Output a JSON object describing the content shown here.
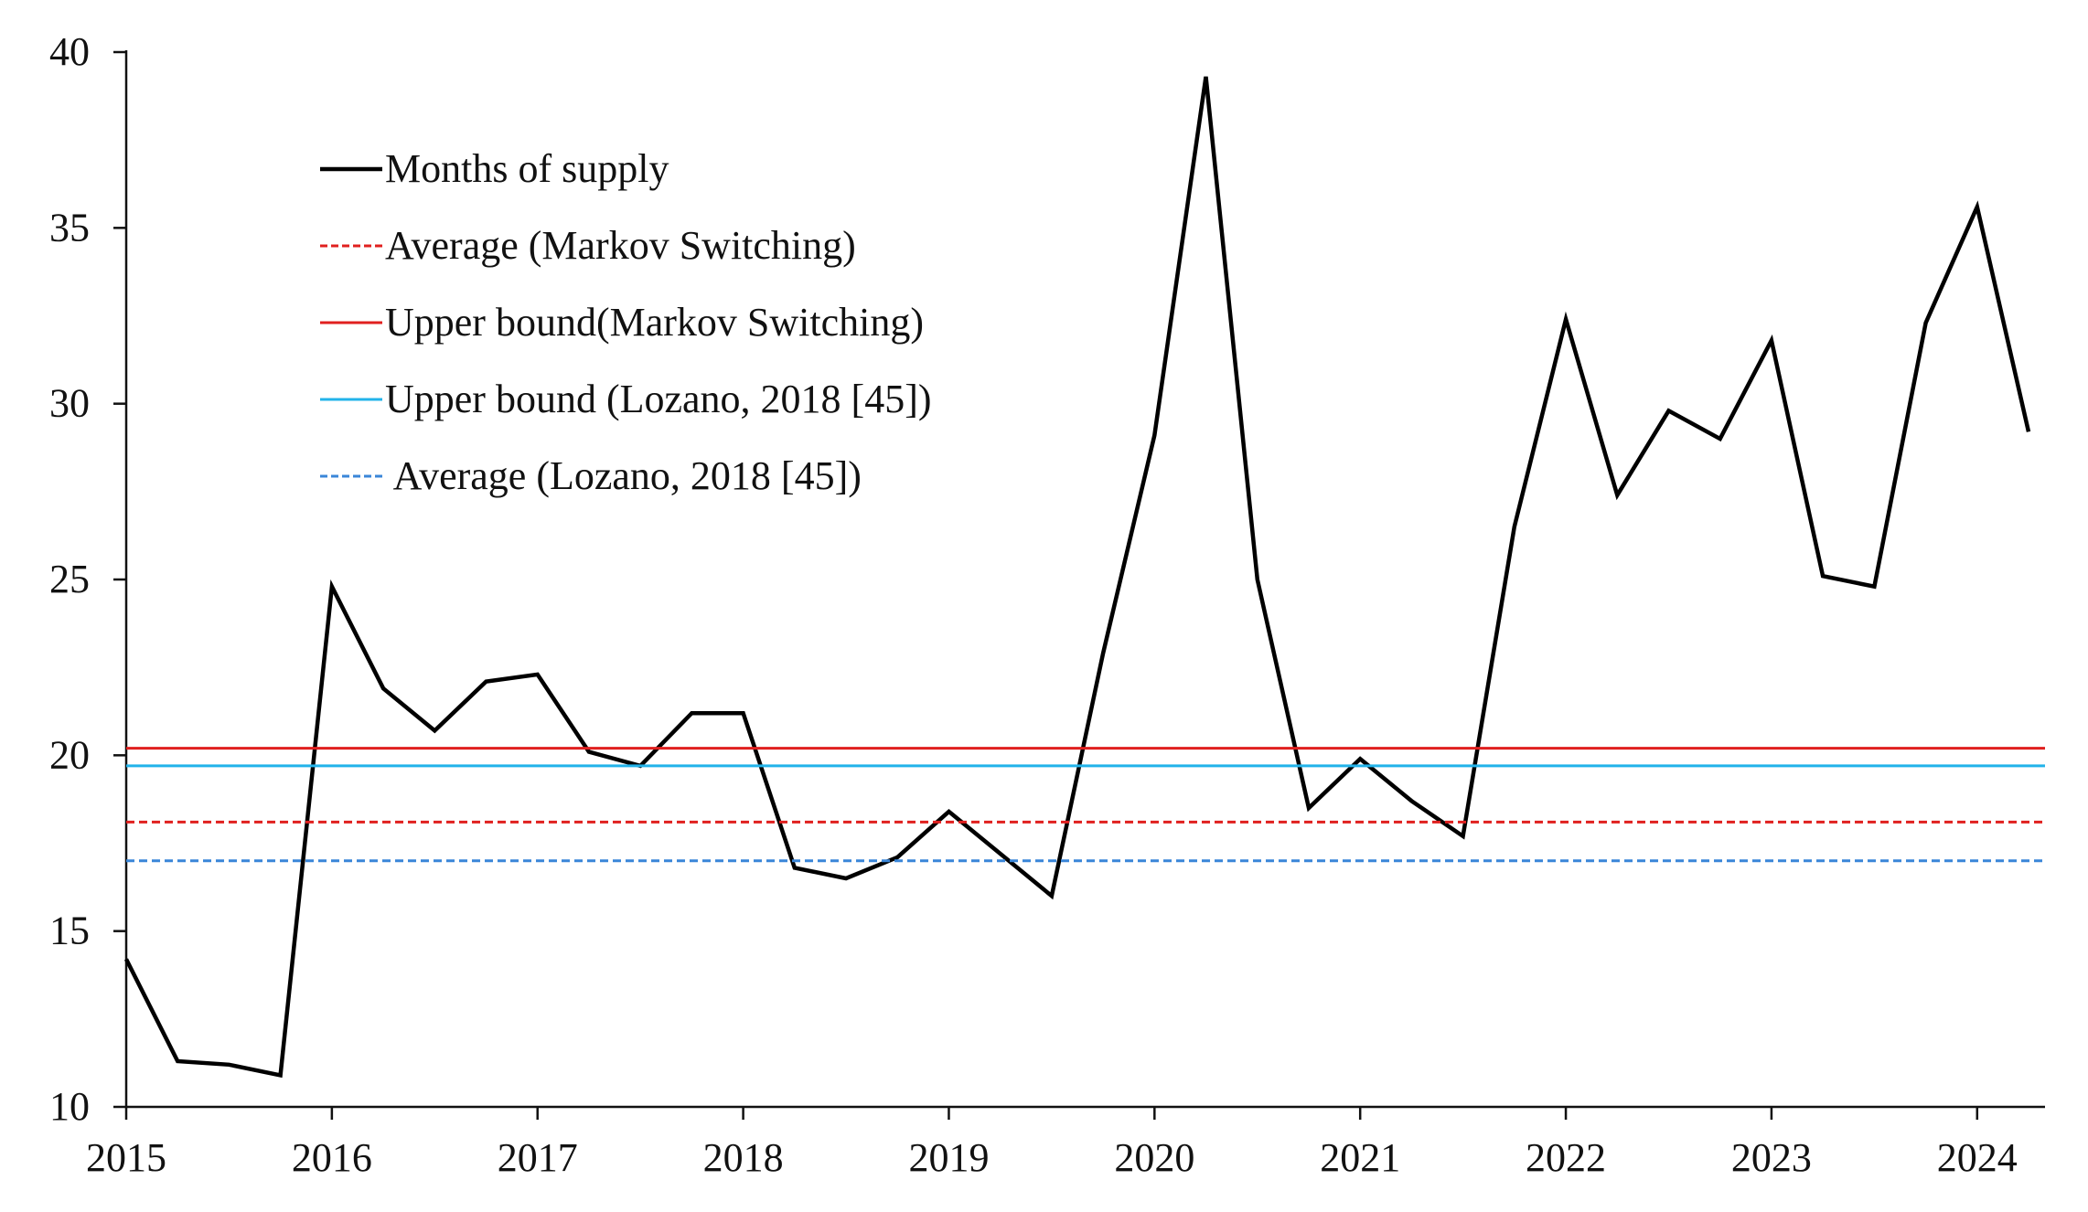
{
  "chart_data": {
    "type": "line",
    "title": "",
    "xlabel": "",
    "ylabel": "",
    "xlim": [
      2015,
      2024.33
    ],
    "ylim": [
      10,
      40
    ],
    "x_ticks": [
      2015,
      2016,
      2017,
      2018,
      2019,
      2020,
      2021,
      2022,
      2023,
      2024
    ],
    "x_tick_labels": [
      "2015",
      "2016",
      "2017",
      "2018",
      "2019",
      "2020",
      "2021",
      "2022",
      "2023",
      "2024"
    ],
    "y_ticks": [
      10,
      15,
      20,
      25,
      30,
      35,
      40
    ],
    "y_tick_labels": [
      "10",
      "15",
      "20",
      "25",
      "30",
      "35",
      "40"
    ],
    "grid": false,
    "legend_position": "top-left",
    "series": [
      {
        "name": "Months of supply",
        "color": "#000000",
        "style": "solid",
        "x": [
          2015.0,
          2015.25,
          2015.5,
          2015.75,
          2016.0,
          2016.25,
          2016.5,
          2016.75,
          2017.0,
          2017.25,
          2017.5,
          2017.75,
          2018.0,
          2018.25,
          2018.5,
          2018.75,
          2019.0,
          2019.25,
          2019.5,
          2019.75,
          2020.0,
          2020.25,
          2020.5,
          2020.75,
          2021.0,
          2021.25,
          2021.5,
          2021.75,
          2022.0,
          2022.25,
          2022.5,
          2022.75,
          2023.0,
          2023.25,
          2023.5,
          2023.75,
          2024.0,
          2024.25
        ],
        "values": [
          14.2,
          11.3,
          11.2,
          10.9,
          24.8,
          21.9,
          20.7,
          22.1,
          22.3,
          20.1,
          19.7,
          21.2,
          21.2,
          16.8,
          16.5,
          17.1,
          18.4,
          17.2,
          16.0,
          22.9,
          29.1,
          39.3,
          25.0,
          18.5,
          19.9,
          18.7,
          17.7,
          26.5,
          32.4,
          27.4,
          29.8,
          29.0,
          31.8,
          25.1,
          24.8,
          32.3,
          35.6,
          29.2
        ]
      },
      {
        "name": "Average (Markov Switching)",
        "color": "#e0201f",
        "style": "dashed",
        "x": [
          2015.0,
          2024.33
        ],
        "values": [
          18.1,
          18.1
        ]
      },
      {
        "name": "Upper bound(Markov Switching)",
        "color": "#e0201f",
        "style": "solid",
        "x": [
          2015.0,
          2024.33
        ],
        "values": [
          20.2,
          20.2
        ]
      },
      {
        "name": "Upper bound (Lozano, 2018 [45])",
        "color": "#22b3ea",
        "style": "solid",
        "x": [
          2015.0,
          2024.33
        ],
        "values": [
          19.7,
          19.7
        ]
      },
      {
        "name": " Average (Lozano, 2018 [45])",
        "color": "#3a86d8",
        "style": "dashed",
        "x": [
          2015.0,
          2024.33
        ],
        "values": [
          17.0,
          17.0
        ]
      }
    ]
  }
}
